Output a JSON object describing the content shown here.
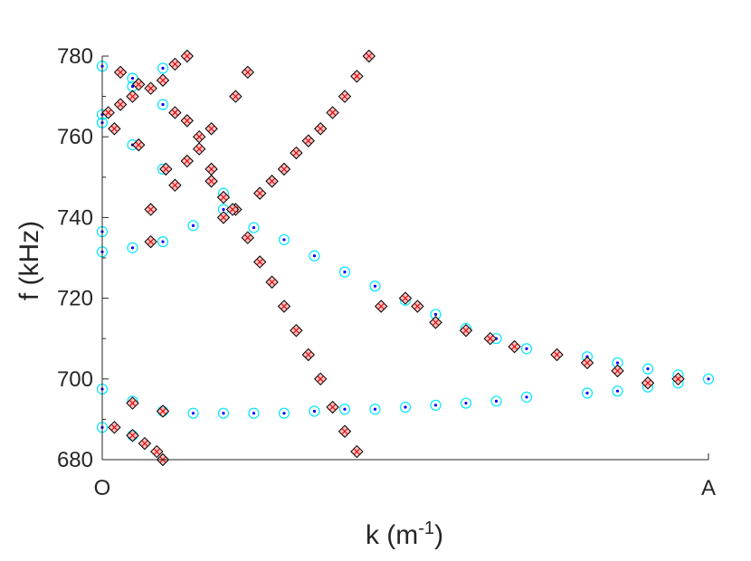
{
  "chart_data": {
    "type": "scatter",
    "title": "",
    "xlabel": "k (m",
    "xlabel_superscript": "-1",
    "xlabel_suffix": ")",
    "ylabel": "f (kHz)",
    "xlim": [
      0,
      1
    ],
    "ylim": [
      680,
      780
    ],
    "x_tick_labels": [
      {
        "x": 0,
        "label": "O"
      },
      {
        "x": 1,
        "label": "A"
      }
    ],
    "y_ticks": [
      680,
      700,
      720,
      740,
      760,
      780
    ],
    "grid": false,
    "colors": {
      "circle_marker": "#00e5ff",
      "dot_marker": "#0000ff",
      "diamond_fill": "#ffc0c0",
      "diamond_cross": "#e00000",
      "diamond_edge": "#000000",
      "axis": "#262626"
    },
    "series": [
      {
        "marker": "circle-dot",
        "points": [
          [
            0.0,
            777.5
          ],
          [
            0.0,
            765.5
          ],
          [
            0.0,
            763.5
          ],
          [
            0.0,
            736.5
          ],
          [
            0.0,
            731.5
          ],
          [
            0.0,
            697.5
          ],
          [
            0.0,
            688.0
          ],
          [
            0.05,
            774.5
          ],
          [
            0.05,
            772.5
          ],
          [
            0.05,
            758.0
          ],
          [
            0.05,
            732.5
          ],
          [
            0.05,
            694.5
          ],
          [
            0.05,
            686.0
          ],
          [
            0.1,
            777.0
          ],
          [
            0.1,
            768.0
          ],
          [
            0.1,
            752.0
          ],
          [
            0.1,
            734.0
          ],
          [
            0.1,
            692.0
          ],
          [
            0.15,
            691.5
          ],
          [
            0.15,
            738.0
          ],
          [
            0.2,
            742.0
          ],
          [
            0.2,
            746.0
          ],
          [
            0.2,
            691.5
          ],
          [
            0.25,
            737.5
          ],
          [
            0.25,
            691.5
          ],
          [
            0.3,
            734.5
          ],
          [
            0.3,
            691.5
          ],
          [
            0.35,
            730.5
          ],
          [
            0.35,
            692.0
          ],
          [
            0.4,
            726.5
          ],
          [
            0.4,
            692.5
          ],
          [
            0.45,
            723.0
          ],
          [
            0.45,
            692.5
          ],
          [
            0.5,
            719.5
          ],
          [
            0.5,
            693.0
          ],
          [
            0.55,
            716.0
          ],
          [
            0.55,
            693.5
          ],
          [
            0.6,
            712.5
          ],
          [
            0.6,
            694.0
          ],
          [
            0.65,
            710.0
          ],
          [
            0.65,
            694.5
          ],
          [
            0.7,
            707.5
          ],
          [
            0.7,
            695.5
          ],
          [
            0.8,
            705.5
          ],
          [
            0.8,
            696.5
          ],
          [
            0.85,
            704.0
          ],
          [
            0.85,
            697.0
          ],
          [
            0.9,
            702.5
          ],
          [
            0.9,
            698.0
          ],
          [
            0.95,
            701.0
          ],
          [
            0.95,
            699.0
          ],
          [
            1.0,
            700.0
          ]
        ]
      },
      {
        "marker": "diamond-x",
        "points": [
          [
            0.01,
            766
          ],
          [
            0.02,
            762
          ],
          [
            0.02,
            688
          ],
          [
            0.03,
            776
          ],
          [
            0.03,
            768
          ],
          [
            0.05,
            770
          ],
          [
            0.05,
            694
          ],
          [
            0.05,
            686
          ],
          [
            0.06,
            773
          ],
          [
            0.06,
            758
          ],
          [
            0.07,
            684
          ],
          [
            0.08,
            772
          ],
          [
            0.08,
            742
          ],
          [
            0.08,
            734
          ],
          [
            0.09,
            682
          ],
          [
            0.1,
            774
          ],
          [
            0.1,
            692
          ],
          [
            0.1,
            680
          ],
          [
            0.12,
            778
          ],
          [
            0.12,
            766
          ],
          [
            0.12,
            748
          ],
          [
            0.14,
            780
          ],
          [
            0.14,
            764
          ],
          [
            0.14,
            754
          ],
          [
            0.16,
            760
          ],
          [
            0.16,
            757
          ],
          [
            0.18,
            762
          ],
          [
            0.18,
            752
          ],
          [
            0.18,
            749
          ],
          [
            0.2,
            745
          ],
          [
            0.2,
            740
          ],
          [
            0.22,
            770
          ],
          [
            0.22,
            742
          ],
          [
            0.24,
            776
          ],
          [
            0.24,
            735
          ],
          [
            0.26,
            746
          ],
          [
            0.26,
            729
          ],
          [
            0.28,
            749
          ],
          [
            0.28,
            724
          ],
          [
            0.3,
            752
          ],
          [
            0.3,
            718
          ],
          [
            0.32,
            756
          ],
          [
            0.32,
            712
          ],
          [
            0.34,
            759
          ],
          [
            0.34,
            706
          ],
          [
            0.36,
            762
          ],
          [
            0.36,
            700
          ],
          [
            0.38,
            766
          ],
          [
            0.38,
            693
          ],
          [
            0.4,
            770
          ],
          [
            0.4,
            687
          ],
          [
            0.42,
            775
          ],
          [
            0.42,
            682
          ],
          [
            0.44,
            780
          ],
          [
            0.46,
            718
          ],
          [
            0.5,
            720
          ],
          [
            0.52,
            718
          ],
          [
            0.55,
            714
          ],
          [
            0.6,
            712
          ],
          [
            0.64,
            710
          ],
          [
            0.68,
            708
          ],
          [
            0.75,
            706
          ],
          [
            0.8,
            704
          ],
          [
            0.85,
            702
          ],
          [
            0.9,
            699
          ],
          [
            0.95,
            700
          ],
          [
            0.215,
            742
          ],
          [
            0.105,
            752
          ]
        ]
      }
    ]
  }
}
